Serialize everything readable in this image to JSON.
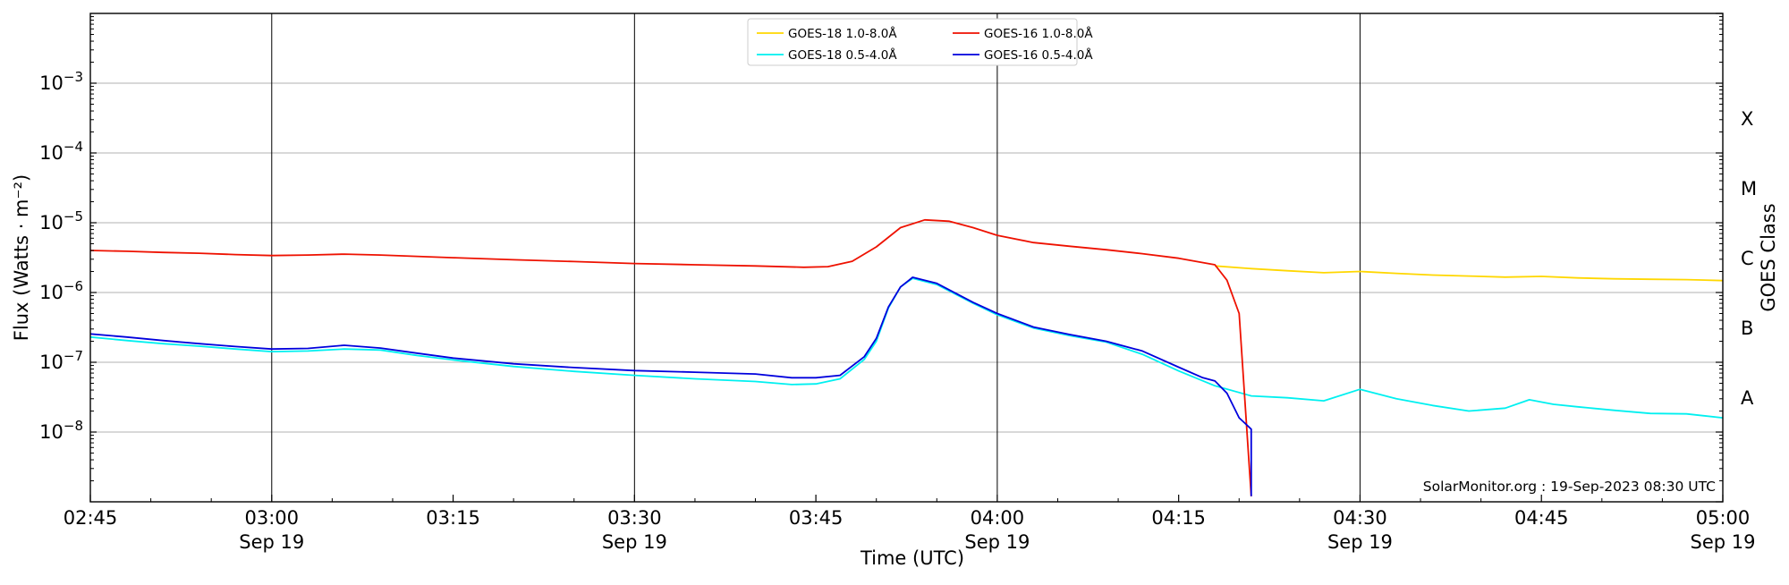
{
  "chart_data": {
    "type": "line",
    "xlabel": "Time (UTC)",
    "ylabel": "Flux (Watts · m⁻²)",
    "ylabel_right": "GOES Class",
    "y_scale": "log",
    "ylim": [
      1e-09,
      0.01
    ],
    "xlim": [
      "02:45",
      "05:00"
    ],
    "grid": "horizontal lines at decades; vertical lines every 30 min",
    "legend_placement": "top-center",
    "watermark": "SolarMonitor.org : 19-Sep-2023 08:30 UTC",
    "x_ticks": [
      {
        "t": "02:45",
        "date": ""
      },
      {
        "t": "03:00",
        "date": "Sep 19"
      },
      {
        "t": "03:15",
        "date": ""
      },
      {
        "t": "03:30",
        "date": "Sep 19"
      },
      {
        "t": "03:45",
        "date": ""
      },
      {
        "t": "04:00",
        "date": "Sep 19"
      },
      {
        "t": "04:15",
        "date": ""
      },
      {
        "t": "04:30",
        "date": "Sep 19"
      },
      {
        "t": "04:45",
        "date": ""
      },
      {
        "t": "05:00",
        "date": "Sep 19"
      }
    ],
    "y_ticks": [
      {
        "exp": -8,
        "label": "10",
        "sup": "−8"
      },
      {
        "exp": -7,
        "label": "10",
        "sup": "−7"
      },
      {
        "exp": -6,
        "label": "10",
        "sup": "−6"
      },
      {
        "exp": -5,
        "label": "10",
        "sup": "−5"
      },
      {
        "exp": -4,
        "label": "10",
        "sup": "−4"
      },
      {
        "exp": -3,
        "label": "10",
        "sup": "−3"
      }
    ],
    "goes_classes": [
      {
        "label": "A",
        "exp": -8
      },
      {
        "label": "B",
        "exp": -7
      },
      {
        "label": "C",
        "exp": -6
      },
      {
        "label": "M",
        "exp": -5
      },
      {
        "label": "X",
        "exp": -4
      }
    ],
    "series": [
      {
        "name": "GOES-18 1.0-8.0Å",
        "color": "#ffd700",
        "points": [
          [
            "04:18",
            2.4e-06
          ],
          [
            "04:21",
            2.2e-06
          ],
          [
            "04:24",
            2.05e-06
          ],
          [
            "04:27",
            1.92e-06
          ],
          [
            "04:30",
            2e-06
          ],
          [
            "04:33",
            1.88e-06
          ],
          [
            "04:36",
            1.78e-06
          ],
          [
            "04:39",
            1.72e-06
          ],
          [
            "04:42",
            1.66e-06
          ],
          [
            "04:45",
            1.7e-06
          ],
          [
            "04:48",
            1.62e-06
          ],
          [
            "04:51",
            1.57e-06
          ],
          [
            "04:54",
            1.55e-06
          ],
          [
            "04:57",
            1.53e-06
          ],
          [
            "05:00",
            1.48e-06
          ]
        ]
      },
      {
        "name": "GOES-16 1.0-8.0Å",
        "color": "#ee1100",
        "points": [
          [
            "02:45",
            4e-06
          ],
          [
            "02:48",
            3.9e-06
          ],
          [
            "02:51",
            3.75e-06
          ],
          [
            "02:54",
            3.65e-06
          ],
          [
            "02:57",
            3.5e-06
          ],
          [
            "03:00",
            3.38e-06
          ],
          [
            "03:03",
            3.45e-06
          ],
          [
            "03:06",
            3.55e-06
          ],
          [
            "03:09",
            3.45e-06
          ],
          [
            "03:12",
            3.3e-06
          ],
          [
            "03:15",
            3.15e-06
          ],
          [
            "03:20",
            2.95e-06
          ],
          [
            "03:25",
            2.78e-06
          ],
          [
            "03:30",
            2.6e-06
          ],
          [
            "03:35",
            2.5e-06
          ],
          [
            "03:40",
            2.4e-06
          ],
          [
            "03:44",
            2.3e-06
          ],
          [
            "03:46",
            2.35e-06
          ],
          [
            "03:48",
            2.8e-06
          ],
          [
            "03:50",
            4.5e-06
          ],
          [
            "03:52",
            8.5e-06
          ],
          [
            "03:54",
            1.1e-05
          ],
          [
            "03:56",
            1.05e-05
          ],
          [
            "03:58",
            8.5e-06
          ],
          [
            "04:00",
            6.6e-06
          ],
          [
            "04:03",
            5.2e-06
          ],
          [
            "04:06",
            4.6e-06
          ],
          [
            "04:09",
            4.1e-06
          ],
          [
            "04:12",
            3.6e-06
          ],
          [
            "04:15",
            3.1e-06
          ],
          [
            "04:18",
            2.5e-06
          ],
          [
            "04:19",
            1.5e-06
          ],
          [
            "04:20",
            5e-07
          ],
          [
            "04:21",
            1.2e-09
          ]
        ]
      },
      {
        "name": "GOES-18 0.5-4.0Å",
        "color": "#00f0f0",
        "points": [
          [
            "02:45",
            2.3e-07
          ],
          [
            "02:48",
            2.05e-07
          ],
          [
            "02:51",
            1.85e-07
          ],
          [
            "02:54",
            1.7e-07
          ],
          [
            "02:57",
            1.55e-07
          ],
          [
            "03:00",
            1.42e-07
          ],
          [
            "03:03",
            1.45e-07
          ],
          [
            "03:06",
            1.55e-07
          ],
          [
            "03:09",
            1.5e-07
          ],
          [
            "03:12",
            1.25e-07
          ],
          [
            "03:15",
            1.08e-07
          ],
          [
            "03:20",
            8.7e-08
          ],
          [
            "03:25",
            7.4e-08
          ],
          [
            "03:30",
            6.5e-08
          ],
          [
            "03:35",
            5.8e-08
          ],
          [
            "03:40",
            5.3e-08
          ],
          [
            "03:43",
            4.8e-08
          ],
          [
            "03:45",
            4.9e-08
          ],
          [
            "03:47",
            5.8e-08
          ],
          [
            "03:49",
            1.1e-07
          ],
          [
            "03:50",
            2e-07
          ],
          [
            "03:51",
            6e-07
          ],
          [
            "03:52",
            1.2e-06
          ],
          [
            "03:53",
            1.6e-06
          ],
          [
            "03:55",
            1.3e-06
          ],
          [
            "03:58",
            7e-07
          ],
          [
            "04:00",
            4.8e-07
          ],
          [
            "04:03",
            3.1e-07
          ],
          [
            "04:06",
            2.4e-07
          ],
          [
            "04:09",
            1.95e-07
          ],
          [
            "04:12",
            1.3e-07
          ],
          [
            "04:15",
            7.5e-08
          ],
          [
            "04:18",
            4.6e-08
          ],
          [
            "04:21",
            3.3e-08
          ],
          [
            "04:24",
            3.1e-08
          ],
          [
            "04:27",
            2.8e-08
          ],
          [
            "04:30",
            4.1e-08
          ],
          [
            "04:33",
            3e-08
          ],
          [
            "04:36",
            2.4e-08
          ],
          [
            "04:39",
            2e-08
          ],
          [
            "04:42",
            2.2e-08
          ],
          [
            "04:44",
            2.9e-08
          ],
          [
            "04:46",
            2.5e-08
          ],
          [
            "04:48",
            2.3e-08
          ],
          [
            "04:51",
            2.05e-08
          ],
          [
            "04:54",
            1.85e-08
          ],
          [
            "04:57",
            1.82e-08
          ],
          [
            "05:00",
            1.6e-08
          ]
        ]
      },
      {
        "name": "GOES-16 0.5-4.0Å",
        "color": "#0000dd",
        "points": [
          [
            "02:45",
            2.55e-07
          ],
          [
            "02:48",
            2.3e-07
          ],
          [
            "02:51",
            2.05e-07
          ],
          [
            "02:54",
            1.85e-07
          ],
          [
            "02:57",
            1.68e-07
          ],
          [
            "03:00",
            1.55e-07
          ],
          [
            "03:03",
            1.58e-07
          ],
          [
            "03:06",
            1.75e-07
          ],
          [
            "03:09",
            1.6e-07
          ],
          [
            "03:12",
            1.35e-07
          ],
          [
            "03:15",
            1.15e-07
          ],
          [
            "03:20",
            9.5e-08
          ],
          [
            "03:25",
            8.4e-08
          ],
          [
            "03:30",
            7.6e-08
          ],
          [
            "03:35",
            7.2e-08
          ],
          [
            "03:40",
            6.8e-08
          ],
          [
            "03:43",
            6e-08
          ],
          [
            "03:45",
            6e-08
          ],
          [
            "03:47",
            6.5e-08
          ],
          [
            "03:49",
            1.2e-07
          ],
          [
            "03:50",
            2.2e-07
          ],
          [
            "03:51",
            6.2e-07
          ],
          [
            "03:52",
            1.2e-06
          ],
          [
            "03:53",
            1.65e-06
          ],
          [
            "03:55",
            1.35e-06
          ],
          [
            "03:58",
            7.2e-07
          ],
          [
            "04:00",
            5e-07
          ],
          [
            "04:03",
            3.2e-07
          ],
          [
            "04:06",
            2.5e-07
          ],
          [
            "04:09",
            2e-07
          ],
          [
            "04:12",
            1.45e-07
          ],
          [
            "04:15",
            8.5e-08
          ],
          [
            "04:17",
            6e-08
          ],
          [
            "04:18",
            5.4e-08
          ],
          [
            "04:19",
            3.6e-08
          ],
          [
            "04:20",
            1.6e-08
          ],
          [
            "04:21",
            1.1e-08
          ],
          [
            "04:21",
            1.2e-09
          ]
        ]
      }
    ]
  }
}
